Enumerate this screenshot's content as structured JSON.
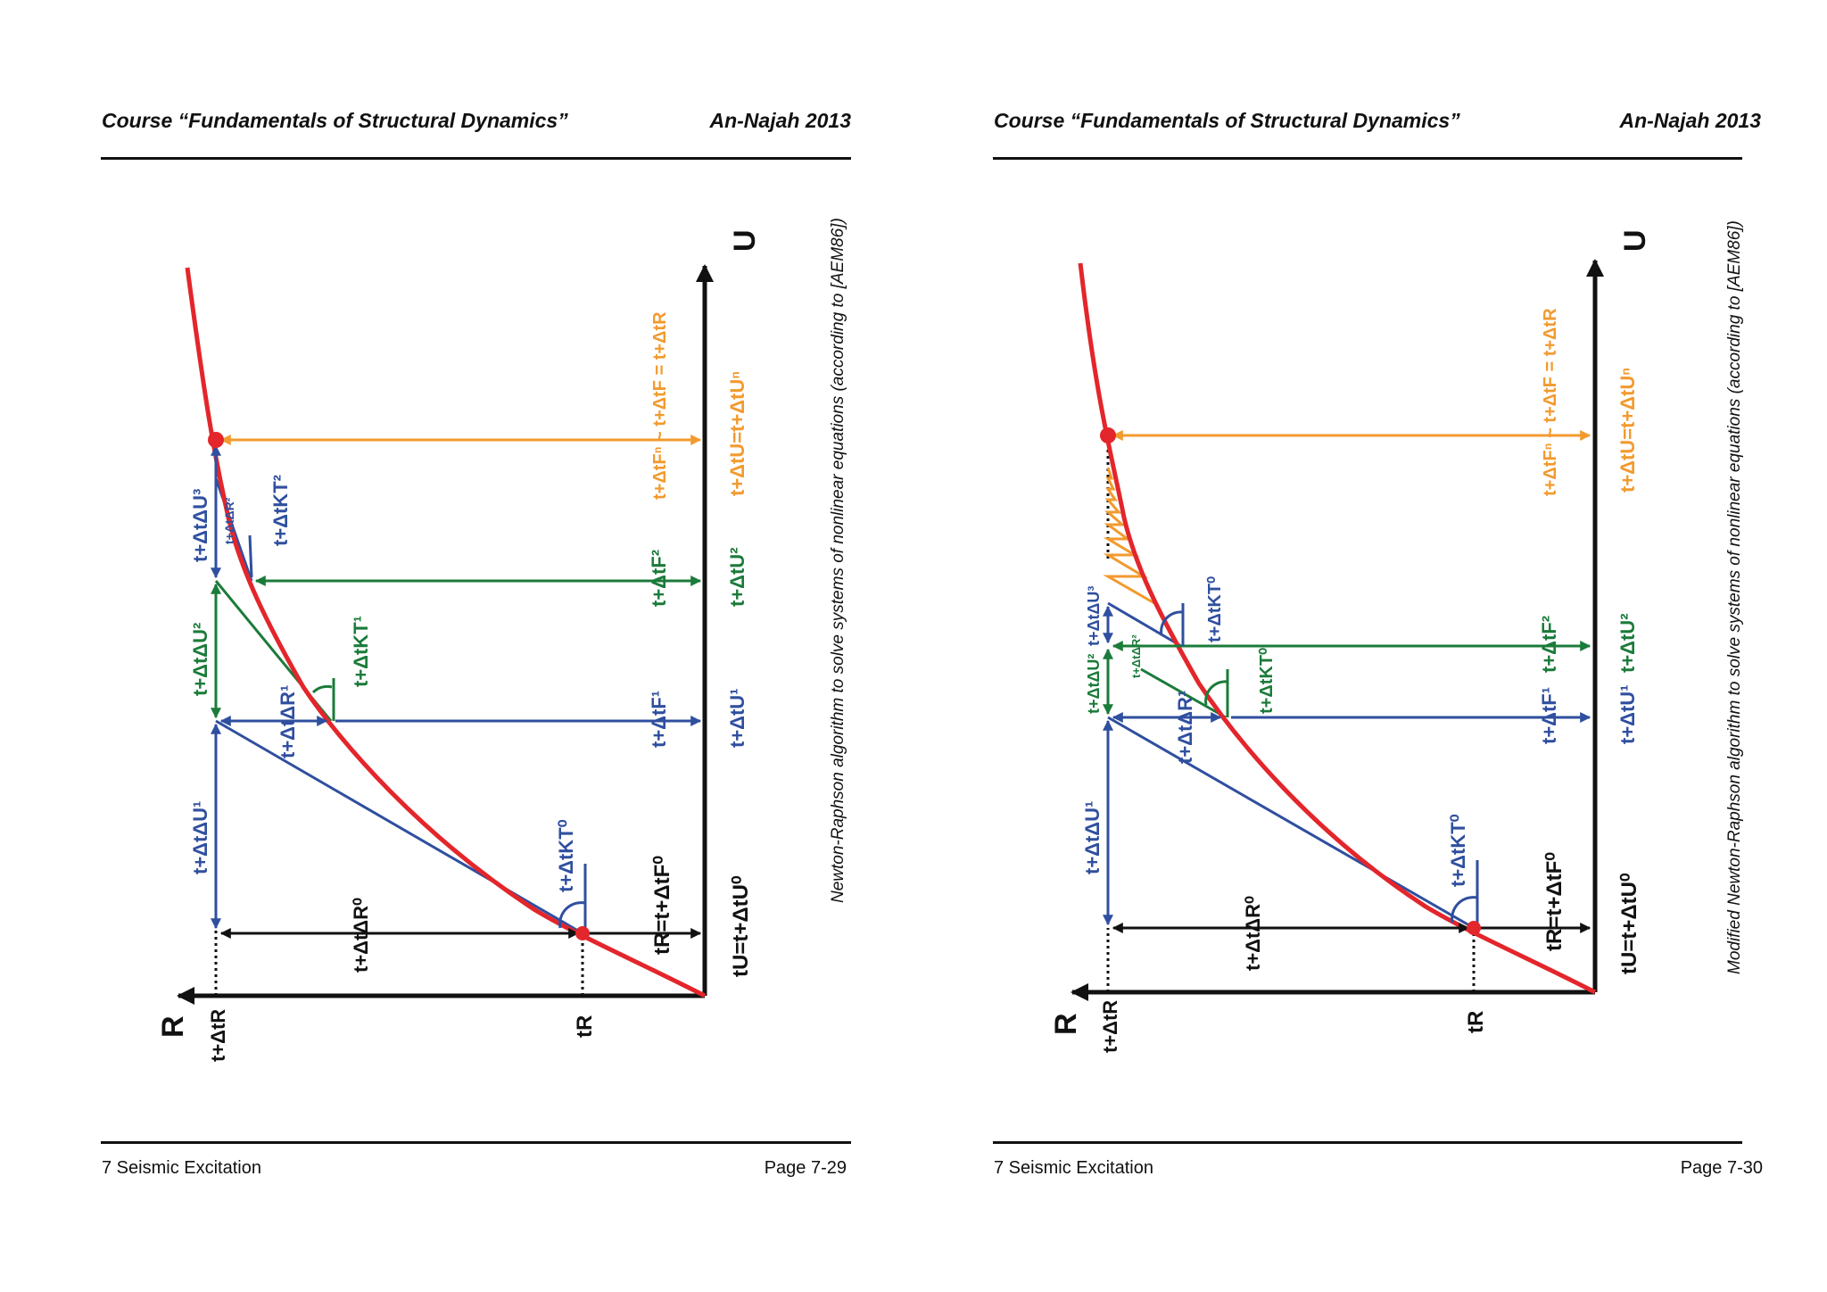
{
  "pages": [
    {
      "header_left": "Course “Fundamentals of Structural Dynamics”",
      "header_right": "An-Najah 2013",
      "footer_left": "7 Seismic Excitation",
      "footer_right": "Page 7-29",
      "caption": "Newton-Raphson algorithm to solve systems of nonlinear equations (according to [AEM86])"
    },
    {
      "header_left": "Course “Fundamentals of Structural Dynamics”",
      "header_right": "An-Najah 2013",
      "footer_left": "7 Seismic Excitation",
      "footer_right": "Page 7-30",
      "caption": "Modified Newton-Raphson algorithm to solve systems of nonlinear equations (according to [AEM86])"
    }
  ],
  "colors": {
    "curve": "#e3262b",
    "blue": "#2f4f9f",
    "green": "#1b7b3a",
    "orange": "#f29a2e",
    "black": "#111111"
  },
  "figure_left": {
    "axis_u": "U",
    "axis_r": "R",
    "lbl_tdtR": "t+ΔtR",
    "lbl_tR": "tR",
    "lbl_dR0": "t+ΔtΔR⁰",
    "lbl_dU1": "t+ΔtΔU¹",
    "lbl_dR1": "t+ΔtΔR¹",
    "lbl_dU2": "t+ΔtΔU²",
    "lbl_dR2": "t+ΔtΔR²",
    "lbl_dU3": "t+ΔtΔU³",
    "lbl_K0": "t+ΔtKT⁰",
    "lbl_K1": "t+ΔtKT¹",
    "lbl_K2": "t+ΔtKT²",
    "lbl_tRF0": "tR=t+ΔtF⁰",
    "lbl_F1": "t+ΔtF¹",
    "lbl_F2": "t+ΔtF²",
    "lbl_Fn": "t+ΔtFⁿ ~ t+ΔtF = t+ΔtR",
    "lbl_U0": "tU=t+ΔtU⁰",
    "lbl_U1": "t+ΔtU¹",
    "lbl_U2": "t+ΔtU²",
    "lbl_Un": "t+ΔtU=t+ΔtUⁿ"
  },
  "figure_right": {
    "axis_u": "U",
    "axis_r": "R",
    "lbl_tdtR": "t+ΔtR",
    "lbl_tR": "tR",
    "lbl_dR0": "t+ΔtΔR⁰",
    "lbl_dU1": "t+ΔtΔU¹",
    "lbl_dR1": "t+ΔtΔR¹",
    "lbl_dU2": "t+ΔtΔU²",
    "lbl_dR2": "t+ΔtΔR²",
    "lbl_dU3": "t+ΔtΔU³",
    "lbl_K0a": "t+ΔtKT⁰",
    "lbl_K0b": "t+ΔtKT⁰",
    "lbl_K0c": "t+ΔtKT⁰",
    "lbl_tRF0": "tR=t+ΔtF⁰",
    "lbl_F1": "t+ΔtF¹",
    "lbl_F2": "t+ΔtF²",
    "lbl_Fn": "t+ΔtFⁿ ~ t+ΔtF = t+ΔtR",
    "lbl_U0": "tU=t+ΔtU⁰",
    "lbl_U1": "t+ΔtU¹",
    "lbl_U2": "t+ΔtU²",
    "lbl_Un": "t+ΔtU=t+ΔtUⁿ"
  }
}
